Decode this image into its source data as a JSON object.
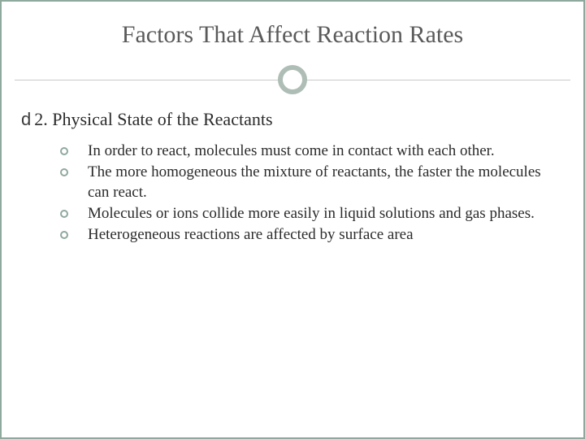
{
  "slide": {
    "title": "Factors That Affect Reaction Rates",
    "subheading_bullet": "d",
    "subheading": "2. Physical State of the Reactants",
    "bullets": [
      "In order to react, molecules must come in contact with each other.",
      "The more homogeneous the mixture of reactants, the faster the molecules can react.",
      "Molecules or ions collide more easily in liquid solutions and gas phases.",
      "Heterogeneous reactions are affected by surface area"
    ]
  },
  "style": {
    "border_color": "#8fa99f",
    "ring_color": "#aebdb6",
    "line_color": "#c9c9c9",
    "title_color": "#5a5a5a",
    "text_color": "#2b2b2b",
    "bullet_ring_color": "#8fa99f",
    "title_fontsize": 30,
    "subhead_fontsize": 22,
    "body_fontsize": 19,
    "background": "#ffffff"
  }
}
